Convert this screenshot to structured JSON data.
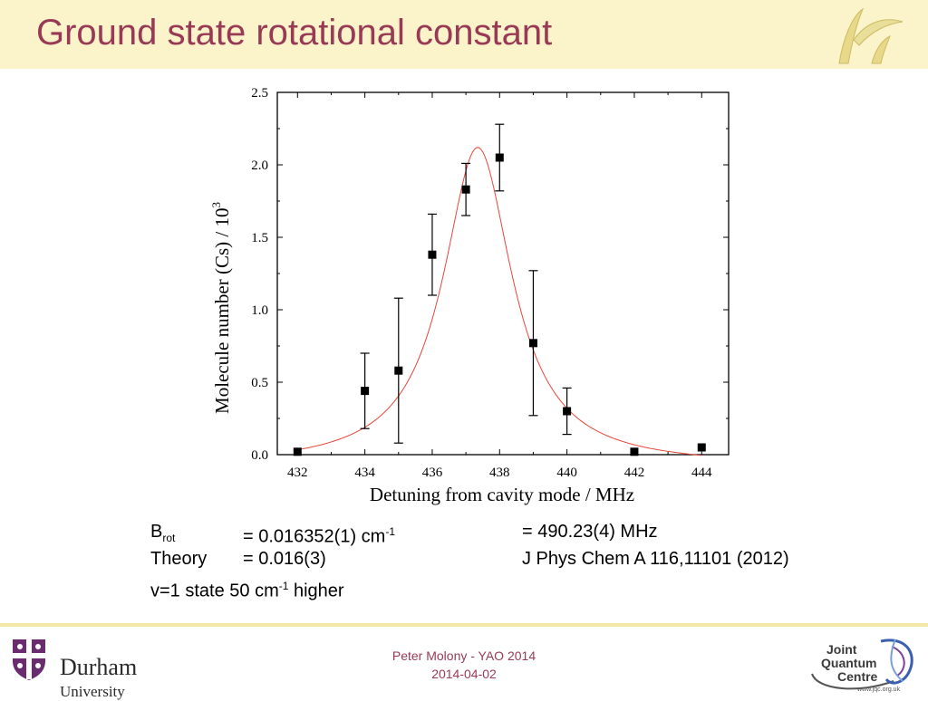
{
  "slide": {
    "title": "Ground state rotational constant",
    "colors": {
      "title": "#983a55",
      "header_bg": "#fbf3c9",
      "fit_curve": "#e8463a",
      "footer_rule": "#f4e8a9"
    }
  },
  "chart_data": {
    "type": "scatter",
    "title": "",
    "xlabel": "Detuning from cavity mode / MHz",
    "ylabel_main": "Molecule number (Cs) / 10",
    "ylabel_sup": "3",
    "xlim": [
      431.4,
      444.8
    ],
    "ylim": [
      0.0,
      2.5
    ],
    "x_ticks": [
      "432",
      "434",
      "436",
      "438",
      "440",
      "442",
      "444"
    ],
    "y_ticks": [
      "0.0",
      "0.5",
      "1.0",
      "1.5",
      "2.0",
      "2.5"
    ],
    "grid": false,
    "series": [
      {
        "kind": "points_with_error_bars",
        "x": [
          432,
          434,
          435,
          436,
          437,
          438,
          439,
          440,
          442,
          444
        ],
        "y": [
          0.02,
          0.44,
          0.58,
          1.38,
          1.83,
          2.05,
          0.77,
          0.3,
          0.02,
          0.05
        ],
        "err": [
          0.0,
          0.26,
          0.5,
          0.28,
          0.18,
          0.23,
          0.5,
          0.16,
          0.0,
          0.0
        ]
      },
      {
        "kind": "lorentzian_fit",
        "center": 437.35,
        "peak": 2.12,
        "hwhm": 1.25,
        "offset": -0.08,
        "x_range": [
          432,
          444
        ]
      }
    ]
  },
  "results": {
    "brot_label": "B",
    "brot_sub": "rot",
    "brot_value_pre": "= 0.016352(1) cm",
    "brot_value_sup": "-1",
    "brot_mhz": "= 490.23(4) MHz",
    "theory_label": "Theory",
    "theory_value": "= 0.016(3)",
    "theory_ref": "J Phys Chem A 116,11101 (2012)",
    "v1_pre": "v=1 state 50 cm",
    "v1_sup": "-1",
    "v1_post": " higher"
  },
  "footer": {
    "line1": "Peter Molony - YAO 2014",
    "line2": "2014-04-02",
    "durham_name": "Durham",
    "durham_sub": "University",
    "jqc_line1": "Joint",
    "jqc_line2": "Quantum",
    "jqc_line3": "Centre",
    "jqc_url": "www.jqc.org.uk"
  }
}
